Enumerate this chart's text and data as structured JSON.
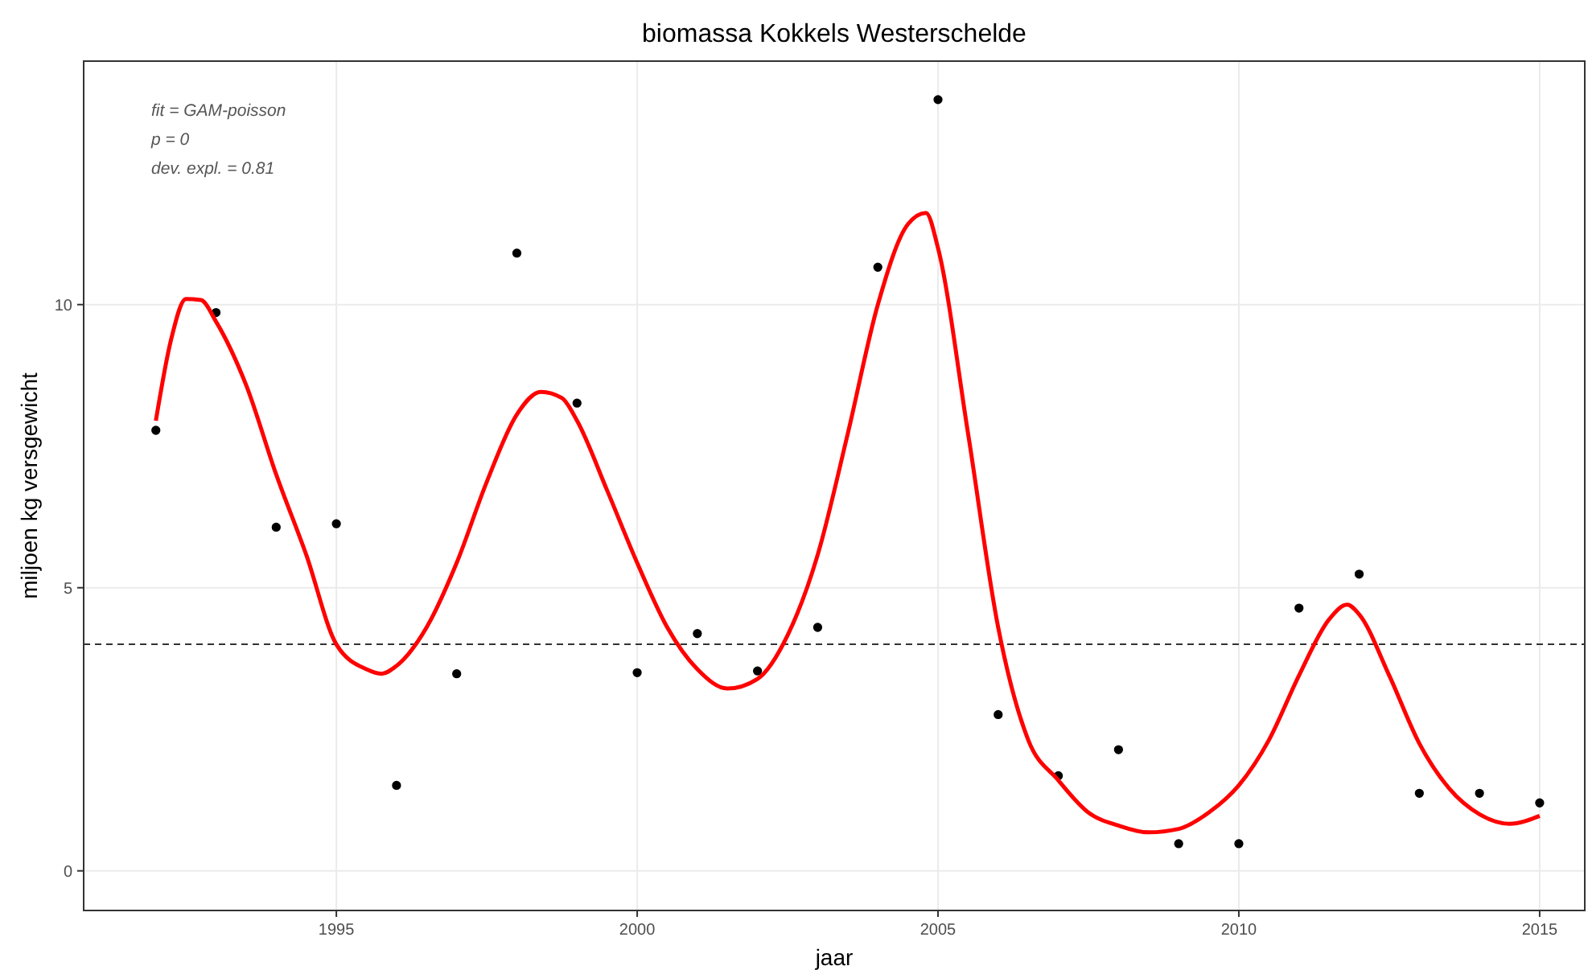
{
  "chart_data": {
    "type": "scatter",
    "title": "biomassa Kokkels Westerschelde",
    "xlabel": "jaar",
    "ylabel": "miljoen kg versgewicht",
    "annotations": [
      "fit = GAM-poisson",
      "p = 0",
      "dev. expl. = 0.81"
    ],
    "xlim": [
      1990.8,
      2015.75
    ],
    "ylim": [
      -0.7,
      14.3
    ],
    "xticks": [
      1995,
      2000,
      2005,
      2010,
      2015
    ],
    "yticks": [
      0,
      5,
      10
    ],
    "grid": true,
    "x": [
      1992,
      1993,
      1994,
      1995,
      1996,
      1997,
      1998,
      1999,
      2000,
      2001,
      2002,
      2003,
      2004,
      2005,
      2006,
      2007,
      2008,
      2009,
      2010,
      2011,
      2012,
      2013,
      2014,
      2015
    ],
    "series": [
      {
        "color": "#000000",
        "marker": "circle",
        "values": [
          7.78,
          9.86,
          6.07,
          6.13,
          1.51,
          3.48,
          10.91,
          8.26,
          3.5,
          4.19,
          3.53,
          4.3,
          10.66,
          13.62,
          2.76,
          1.68,
          2.14,
          0.48,
          0.48,
          4.64,
          5.24,
          1.37,
          1.37,
          1.2
        ]
      },
      {
        "type": "line",
        "color": "#ff0000",
        "line_style": "solid",
        "x": [
          1992,
          1992.25,
          1992.5,
          1992.75,
          1993,
          1993.5,
          1994,
          1994.5,
          1995,
          1995.5,
          1995.75,
          1996,
          1996.5,
          1997,
          1997.5,
          1998,
          1998.4,
          1998.75,
          1999,
          1999.5,
          2000,
          2000.5,
          2001,
          2001.5,
          2002,
          2002.5,
          2003,
          2003.5,
          2004,
          2004.5,
          2004.8,
          2005,
          2005.5,
          2006,
          2006.5,
          2007,
          2007.5,
          2008,
          2008.5,
          2009,
          2009.5,
          2010,
          2010.5,
          2011,
          2011.5,
          2011.8,
          2012,
          2012.5,
          2013,
          2013.5,
          2014,
          2014.5,
          2015
        ],
        "values": [
          7.95,
          9.37,
          10.1,
          10.08,
          9.7,
          8.58,
          7.0,
          5.58,
          4.0,
          3.56,
          3.48,
          3.62,
          4.3,
          5.44,
          6.87,
          8.06,
          8.46,
          8.35,
          7.95,
          6.72,
          5.44,
          4.3,
          3.56,
          3.22,
          3.39,
          4.16,
          5.58,
          7.72,
          10.0,
          11.42,
          11.62,
          11.0,
          7.72,
          4.3,
          2.31,
          1.6,
          1.03,
          0.8,
          0.68,
          0.74,
          1.03,
          1.51,
          2.31,
          3.45,
          4.44,
          4.7,
          4.53,
          3.45,
          2.25,
          1.45,
          1.0,
          0.83,
          0.97
        ]
      }
    ],
    "ref_lines": [
      {
        "axis": "y",
        "value": 4,
        "line_style": "dashed",
        "color": "#333333"
      }
    ]
  }
}
